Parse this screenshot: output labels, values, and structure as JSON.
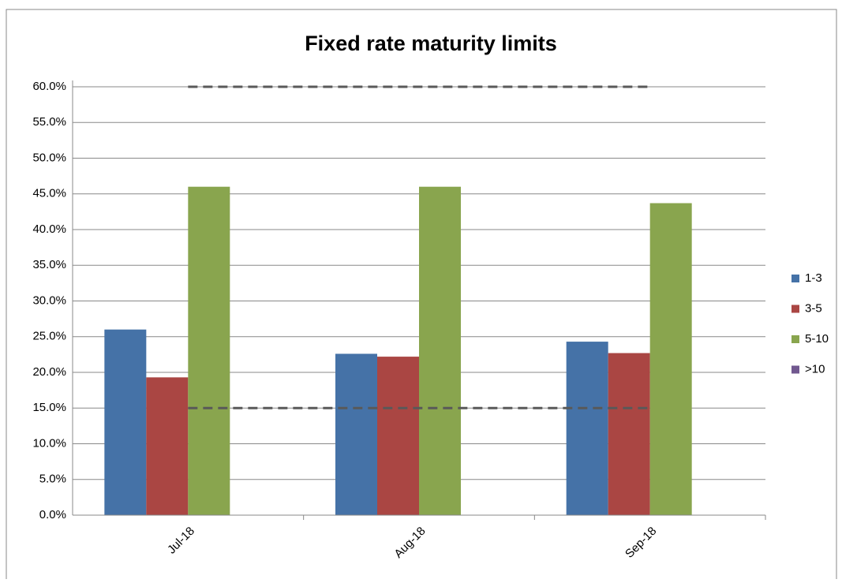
{
  "chart_data": {
    "type": "bar",
    "title": "Fixed rate maturity limits",
    "categories": [
      "Jul-18",
      "Aug-18",
      "Sep-18"
    ],
    "series": [
      {
        "name": "1-3",
        "color": "#4572a7",
        "values": [
          26.0,
          22.6,
          24.3
        ]
      },
      {
        "name": "3-5",
        "color": "#aa4643",
        "values": [
          19.3,
          22.2,
          22.7
        ]
      },
      {
        "name": "5-10",
        "color": "#89a54e",
        "values": [
          46.0,
          46.0,
          43.7
        ]
      },
      {
        "name": ">10",
        "color": "#71588f",
        "values": [
          0,
          0,
          0
        ]
      }
    ],
    "reference_lines": [
      60,
      15
    ],
    "reference_color": "#595959",
    "ylim": [
      0,
      60
    ],
    "yticks": [
      {
        "value": 0,
        "label": "0.0%"
      },
      {
        "value": 5,
        "label": "5.0%"
      },
      {
        "value": 10,
        "label": "10.0%"
      },
      {
        "value": 15,
        "label": "15.0%"
      },
      {
        "value": 20,
        "label": "20.0%"
      },
      {
        "value": 25,
        "label": "25.0%"
      },
      {
        "value": 30,
        "label": "30.0%"
      },
      {
        "value": 35,
        "label": "35.0%"
      },
      {
        "value": 40,
        "label": "40.0%"
      },
      {
        "value": 45,
        "label": "45.0%"
      },
      {
        "value": 50,
        "label": "50.0%"
      },
      {
        "value": 55,
        "label": "55.0%"
      },
      {
        "value": 60,
        "label": "60.0%"
      }
    ],
    "grid": true,
    "legend": "right"
  }
}
